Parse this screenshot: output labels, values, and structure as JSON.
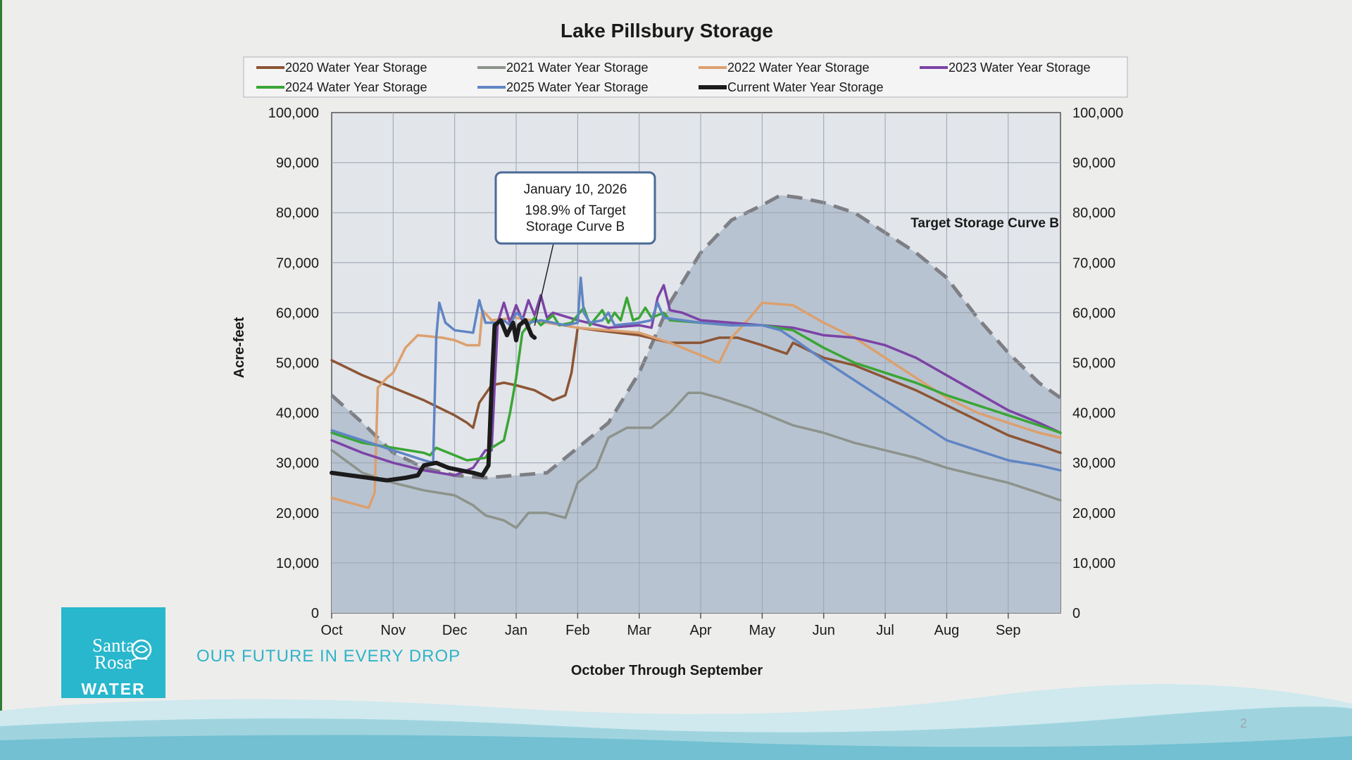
{
  "slide": {
    "tagline": "OUR FUTURE IN EVERY DROP",
    "page_number": "2",
    "logo": {
      "line1": "Santa",
      "line2": "Rosa",
      "word": "WATER",
      "color": "#28b7cc"
    }
  },
  "chart_data": {
    "type": "line",
    "title": "Lake Pillsbury Storage",
    "xlabel": "October Through September",
    "ylabel": "Acre-feet",
    "ylim": [
      0,
      100000
    ],
    "yticks": [
      "0",
      "10,000",
      "20,000",
      "30,000",
      "40,000",
      "50,000",
      "60,000",
      "70,000",
      "80,000",
      "90,000",
      "100,000"
    ],
    "x_unit": "month index from Oct 1 (0 = Oct 1, 12 = Sep 30)",
    "xlim": [
      0,
      11.85
    ],
    "months": [
      "Oct",
      "Nov",
      "Dec",
      "Jan",
      "Feb",
      "Mar",
      "Apr",
      "May",
      "Jun",
      "Jul",
      "Aug",
      "Sep"
    ],
    "grid": true,
    "secondary_y_axis": true,
    "legend_position": "top",
    "target_curve": {
      "label": "Target Storage Curve B",
      "color": "#7d7f85",
      "fill": "#b8c3d1",
      "points": [
        [
          0,
          43500
        ],
        [
          0.5,
          38000
        ],
        [
          1,
          32000
        ],
        [
          1.5,
          29000
        ],
        [
          2,
          27500
        ],
        [
          2.5,
          27000
        ],
        [
          3,
          27500
        ],
        [
          3.5,
          28000
        ],
        [
          4,
          33000
        ],
        [
          4.5,
          38000
        ],
        [
          5,
          48000
        ],
        [
          5.5,
          62000
        ],
        [
          6,
          72000
        ],
        [
          6.5,
          78500
        ],
        [
          7,
          81500
        ],
        [
          7.3,
          83500
        ],
        [
          7.6,
          83000
        ],
        [
          8,
          82000
        ],
        [
          8.5,
          80000
        ],
        [
          9,
          76000
        ],
        [
          9.5,
          72000
        ],
        [
          10,
          67000
        ],
        [
          10.5,
          59000
        ],
        [
          11,
          52000
        ],
        [
          11.5,
          46000
        ],
        [
          11.85,
          43000
        ]
      ]
    },
    "series": [
      {
        "name": "2020 Water Year Storage",
        "color": "#8c5535",
        "points": [
          [
            0,
            50500
          ],
          [
            0.5,
            47500
          ],
          [
            1,
            45000
          ],
          [
            1.5,
            42500
          ],
          [
            2,
            39500
          ],
          [
            2.2,
            38000
          ],
          [
            2.3,
            37000
          ],
          [
            2.4,
            42000
          ],
          [
            2.6,
            45500
          ],
          [
            2.8,
            46000
          ],
          [
            3,
            45500
          ],
          [
            3.3,
            44500
          ],
          [
            3.6,
            42500
          ],
          [
            3.8,
            43500
          ],
          [
            3.9,
            48000
          ],
          [
            4,
            57000
          ],
          [
            4.3,
            56500
          ],
          [
            5,
            55500
          ],
          [
            5.5,
            54000
          ],
          [
            6,
            54000
          ],
          [
            6.3,
            55000
          ],
          [
            6.6,
            55000
          ],
          [
            7,
            53500
          ],
          [
            7.4,
            51800
          ],
          [
            7.5,
            54000
          ],
          [
            8,
            51000
          ],
          [
            8.5,
            49500
          ],
          [
            9,
            47000
          ],
          [
            9.5,
            44500
          ],
          [
            10,
            41500
          ],
          [
            10.5,
            38500
          ],
          [
            11,
            35500
          ],
          [
            11.5,
            33500
          ],
          [
            11.85,
            32000
          ]
        ]
      },
      {
        "name": "2021 Water Year Storage",
        "color": "#8c938b",
        "points": [
          [
            0,
            32500
          ],
          [
            0.5,
            28000
          ],
          [
            1,
            26000
          ],
          [
            1.5,
            24500
          ],
          [
            2,
            23500
          ],
          [
            2.3,
            21500
          ],
          [
            2.5,
            19500
          ],
          [
            2.8,
            18500
          ],
          [
            3,
            17000
          ],
          [
            3.2,
            20000
          ],
          [
            3.5,
            20000
          ],
          [
            3.8,
            19000
          ],
          [
            4,
            26000
          ],
          [
            4.3,
            29000
          ],
          [
            4.5,
            35000
          ],
          [
            4.8,
            37000
          ],
          [
            5.2,
            37000
          ],
          [
            5.5,
            40000
          ],
          [
            5.8,
            44000
          ],
          [
            6,
            44000
          ],
          [
            6.3,
            43000
          ],
          [
            6.8,
            41000
          ],
          [
            7,
            40000
          ],
          [
            7.5,
            37500
          ],
          [
            8,
            36000
          ],
          [
            8.5,
            34000
          ],
          [
            9,
            32500
          ],
          [
            9.5,
            31000
          ],
          [
            10,
            29000
          ],
          [
            10.5,
            27500
          ],
          [
            11,
            26000
          ],
          [
            11.5,
            24000
          ],
          [
            11.85,
            22500
          ]
        ]
      },
      {
        "name": "2022 Water Year Storage",
        "color": "#dba06f",
        "points": [
          [
            0,
            23000
          ],
          [
            0.3,
            22000
          ],
          [
            0.6,
            21000
          ],
          [
            0.7,
            24000
          ],
          [
            0.75,
            45000
          ],
          [
            0.9,
            47000
          ],
          [
            1,
            48000
          ],
          [
            1.2,
            53000
          ],
          [
            1.4,
            55500
          ],
          [
            1.8,
            55000
          ],
          [
            2,
            54500
          ],
          [
            2.2,
            53500
          ],
          [
            2.4,
            53500
          ],
          [
            2.45,
            60500
          ],
          [
            2.6,
            58500
          ],
          [
            3,
            59000
          ],
          [
            3.5,
            58000
          ],
          [
            4,
            57000
          ],
          [
            4.5,
            56500
          ],
          [
            5,
            56000
          ],
          [
            5.5,
            54000
          ],
          [
            6,
            51500
          ],
          [
            6.3,
            50000
          ],
          [
            6.5,
            55000
          ],
          [
            6.8,
            59000
          ],
          [
            7,
            62000
          ],
          [
            7.5,
            61500
          ],
          [
            8,
            58000
          ],
          [
            8.5,
            55000
          ],
          [
            9,
            51000
          ],
          [
            9.5,
            47000
          ],
          [
            10,
            43000
          ],
          [
            10.5,
            40000
          ],
          [
            11,
            38000
          ],
          [
            11.5,
            36000
          ],
          [
            11.85,
            35000
          ]
        ]
      },
      {
        "name": "2023 Water Year Storage",
        "color": "#7c43a6",
        "points": [
          [
            0,
            34500
          ],
          [
            0.5,
            32000
          ],
          [
            1,
            30000
          ],
          [
            1.5,
            28500
          ],
          [
            2,
            27500
          ],
          [
            2.3,
            29000
          ],
          [
            2.5,
            32500
          ],
          [
            2.6,
            32500
          ],
          [
            2.7,
            58000
          ],
          [
            2.8,
            62000
          ],
          [
            2.9,
            58000
          ],
          [
            3,
            61500
          ],
          [
            3.1,
            58500
          ],
          [
            3.2,
            62500
          ],
          [
            3.3,
            59500
          ],
          [
            3.4,
            63500
          ],
          [
            3.5,
            59000
          ],
          [
            3.6,
            60000
          ],
          [
            4,
            58500
          ],
          [
            4.5,
            57000
          ],
          [
            5,
            57500
          ],
          [
            5.2,
            57000
          ],
          [
            5.3,
            63000
          ],
          [
            5.4,
            65500
          ],
          [
            5.5,
            60500
          ],
          [
            5.7,
            60000
          ],
          [
            6,
            58500
          ],
          [
            6.5,
            58000
          ],
          [
            7,
            57500
          ],
          [
            7.5,
            57000
          ],
          [
            8,
            55500
          ],
          [
            8.5,
            55000
          ],
          [
            9,
            53500
          ],
          [
            9.5,
            51000
          ],
          [
            10,
            47500
          ],
          [
            10.5,
            44000
          ],
          [
            11,
            40500
          ],
          [
            11.5,
            38000
          ],
          [
            11.85,
            36000
          ]
        ]
      },
      {
        "name": "2024 Water Year Storage",
        "color": "#3aa635",
        "points": [
          [
            0,
            36000
          ],
          [
            0.5,
            34000
          ],
          [
            1,
            33000
          ],
          [
            1.5,
            32000
          ],
          [
            1.6,
            31500
          ],
          [
            1.7,
            33000
          ],
          [
            2,
            31500
          ],
          [
            2.2,
            30500
          ],
          [
            2.5,
            31000
          ],
          [
            2.6,
            33000
          ],
          [
            2.8,
            34500
          ],
          [
            2.9,
            40000
          ],
          [
            3,
            47000
          ],
          [
            3.1,
            56000
          ],
          [
            3.3,
            59000
          ],
          [
            3.4,
            57500
          ],
          [
            3.6,
            59500
          ],
          [
            3.7,
            57500
          ],
          [
            3.9,
            58000
          ],
          [
            4.1,
            61000
          ],
          [
            4.2,
            57500
          ],
          [
            4.4,
            60500
          ],
          [
            4.5,
            58000
          ],
          [
            4.6,
            60000
          ],
          [
            4.7,
            58500
          ],
          [
            4.8,
            63000
          ],
          [
            4.9,
            58500
          ],
          [
            5,
            59000
          ],
          [
            5.1,
            61000
          ],
          [
            5.2,
            59000
          ],
          [
            5.4,
            60000
          ],
          [
            5.5,
            58500
          ],
          [
            6,
            58000
          ],
          [
            6.5,
            57500
          ],
          [
            7,
            57500
          ],
          [
            7.5,
            56500
          ],
          [
            8,
            53000
          ],
          [
            8.5,
            50000
          ],
          [
            9,
            48000
          ],
          [
            9.5,
            46000
          ],
          [
            10,
            43500
          ],
          [
            10.5,
            41500
          ],
          [
            11,
            39500
          ],
          [
            11.5,
            37500
          ],
          [
            11.85,
            36000
          ]
        ]
      },
      {
        "name": "2025 Water Year Storage",
        "color": "#5f85c4",
        "points": [
          [
            0,
            36500
          ],
          [
            0.5,
            34500
          ],
          [
            1,
            32500
          ],
          [
            1.5,
            30500
          ],
          [
            1.65,
            30000
          ],
          [
            1.7,
            55000
          ],
          [
            1.75,
            62000
          ],
          [
            1.85,
            58000
          ],
          [
            2,
            56500
          ],
          [
            2.3,
            56000
          ],
          [
            2.4,
            62500
          ],
          [
            2.5,
            58000
          ],
          [
            2.7,
            58000
          ],
          [
            2.8,
            58500
          ],
          [
            2.9,
            57500
          ],
          [
            3,
            60000
          ],
          [
            3.2,
            58000
          ],
          [
            3.4,
            58500
          ],
          [
            3.6,
            58000
          ],
          [
            3.8,
            57500
          ],
          [
            4,
            58000
          ],
          [
            4.05,
            67000
          ],
          [
            4.1,
            60000
          ],
          [
            4.2,
            58000
          ],
          [
            4.4,
            58500
          ],
          [
            4.5,
            60000
          ],
          [
            4.6,
            57500
          ],
          [
            5,
            58000
          ],
          [
            5.2,
            58500
          ],
          [
            5.3,
            62000
          ],
          [
            5.4,
            59000
          ],
          [
            6,
            58000
          ],
          [
            6.5,
            57500
          ],
          [
            7,
            57500
          ],
          [
            7.3,
            56500
          ],
          [
            7.6,
            54000
          ],
          [
            8,
            50500
          ],
          [
            8.5,
            46500
          ],
          [
            9,
            42500
          ],
          [
            9.5,
            38500
          ],
          [
            10,
            34500
          ],
          [
            10.5,
            32500
          ],
          [
            11,
            30500
          ],
          [
            11.5,
            29500
          ],
          [
            11.85,
            28500
          ]
        ]
      },
      {
        "name": "Current Water Year Storage",
        "color": "#1b1b1b",
        "points": [
          [
            0,
            28000
          ],
          [
            0.3,
            27500
          ],
          [
            0.6,
            27000
          ],
          [
            0.9,
            26500
          ],
          [
            1.2,
            27000
          ],
          [
            1.4,
            27500
          ],
          [
            1.5,
            29500
          ],
          [
            1.7,
            30000
          ],
          [
            1.9,
            29000
          ],
          [
            2.1,
            28500
          ],
          [
            2.3,
            28000
          ],
          [
            2.45,
            27500
          ],
          [
            2.55,
            29500
          ],
          [
            2.6,
            45000
          ],
          [
            2.65,
            57500
          ],
          [
            2.75,
            58500
          ],
          [
            2.85,
            55500
          ],
          [
            2.95,
            58000
          ],
          [
            3,
            54500
          ],
          [
            3.05,
            57500
          ],
          [
            3.15,
            58500
          ],
          [
            3.25,
            55500
          ],
          [
            3.3,
            55000
          ]
        ]
      }
    ],
    "annotation": {
      "date": "January 10, 2026",
      "line1": "198.9% of Target",
      "line2": "Storage Curve B",
      "points_to": [
        3.3,
        56000
      ]
    }
  }
}
